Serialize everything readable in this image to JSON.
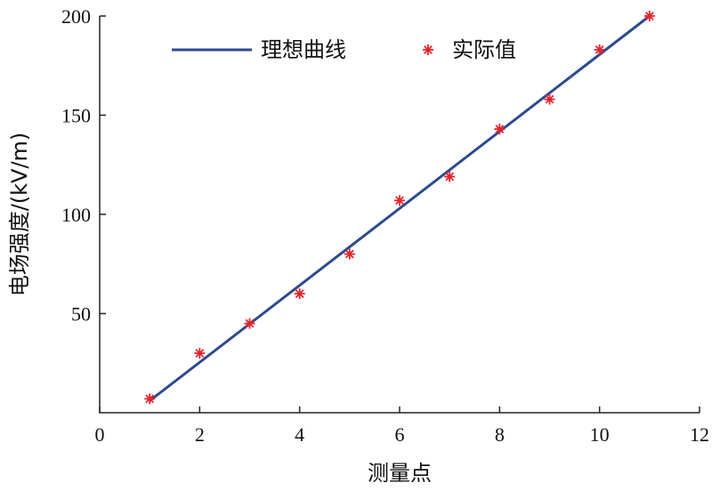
{
  "chart_data": {
    "type": "line",
    "xlabel": "测量点",
    "ylabel": "电场强度/(kV/m)",
    "xlim": [
      0,
      12
    ],
    "ylim": [
      0,
      200
    ],
    "xticks": [
      "0",
      "2",
      "4",
      "6",
      "8",
      "10",
      "12"
    ],
    "yticks": [
      "50",
      "100",
      "150",
      "200"
    ],
    "legend_position": "top",
    "grid": false,
    "series": [
      {
        "name": "理想曲线",
        "style": "line",
        "color": "#2e4a8c",
        "x": [
          1,
          11
        ],
        "y": [
          6,
          200
        ]
      },
      {
        "name": "实际值",
        "style": "marker",
        "marker": "asterisk",
        "color": "#e5232b",
        "x": [
          1,
          2,
          3,
          4,
          5,
          6,
          7,
          8,
          9,
          10,
          11
        ],
        "y": [
          7,
          30,
          45,
          60,
          80,
          107,
          119,
          143,
          158,
          183,
          200
        ]
      }
    ]
  }
}
